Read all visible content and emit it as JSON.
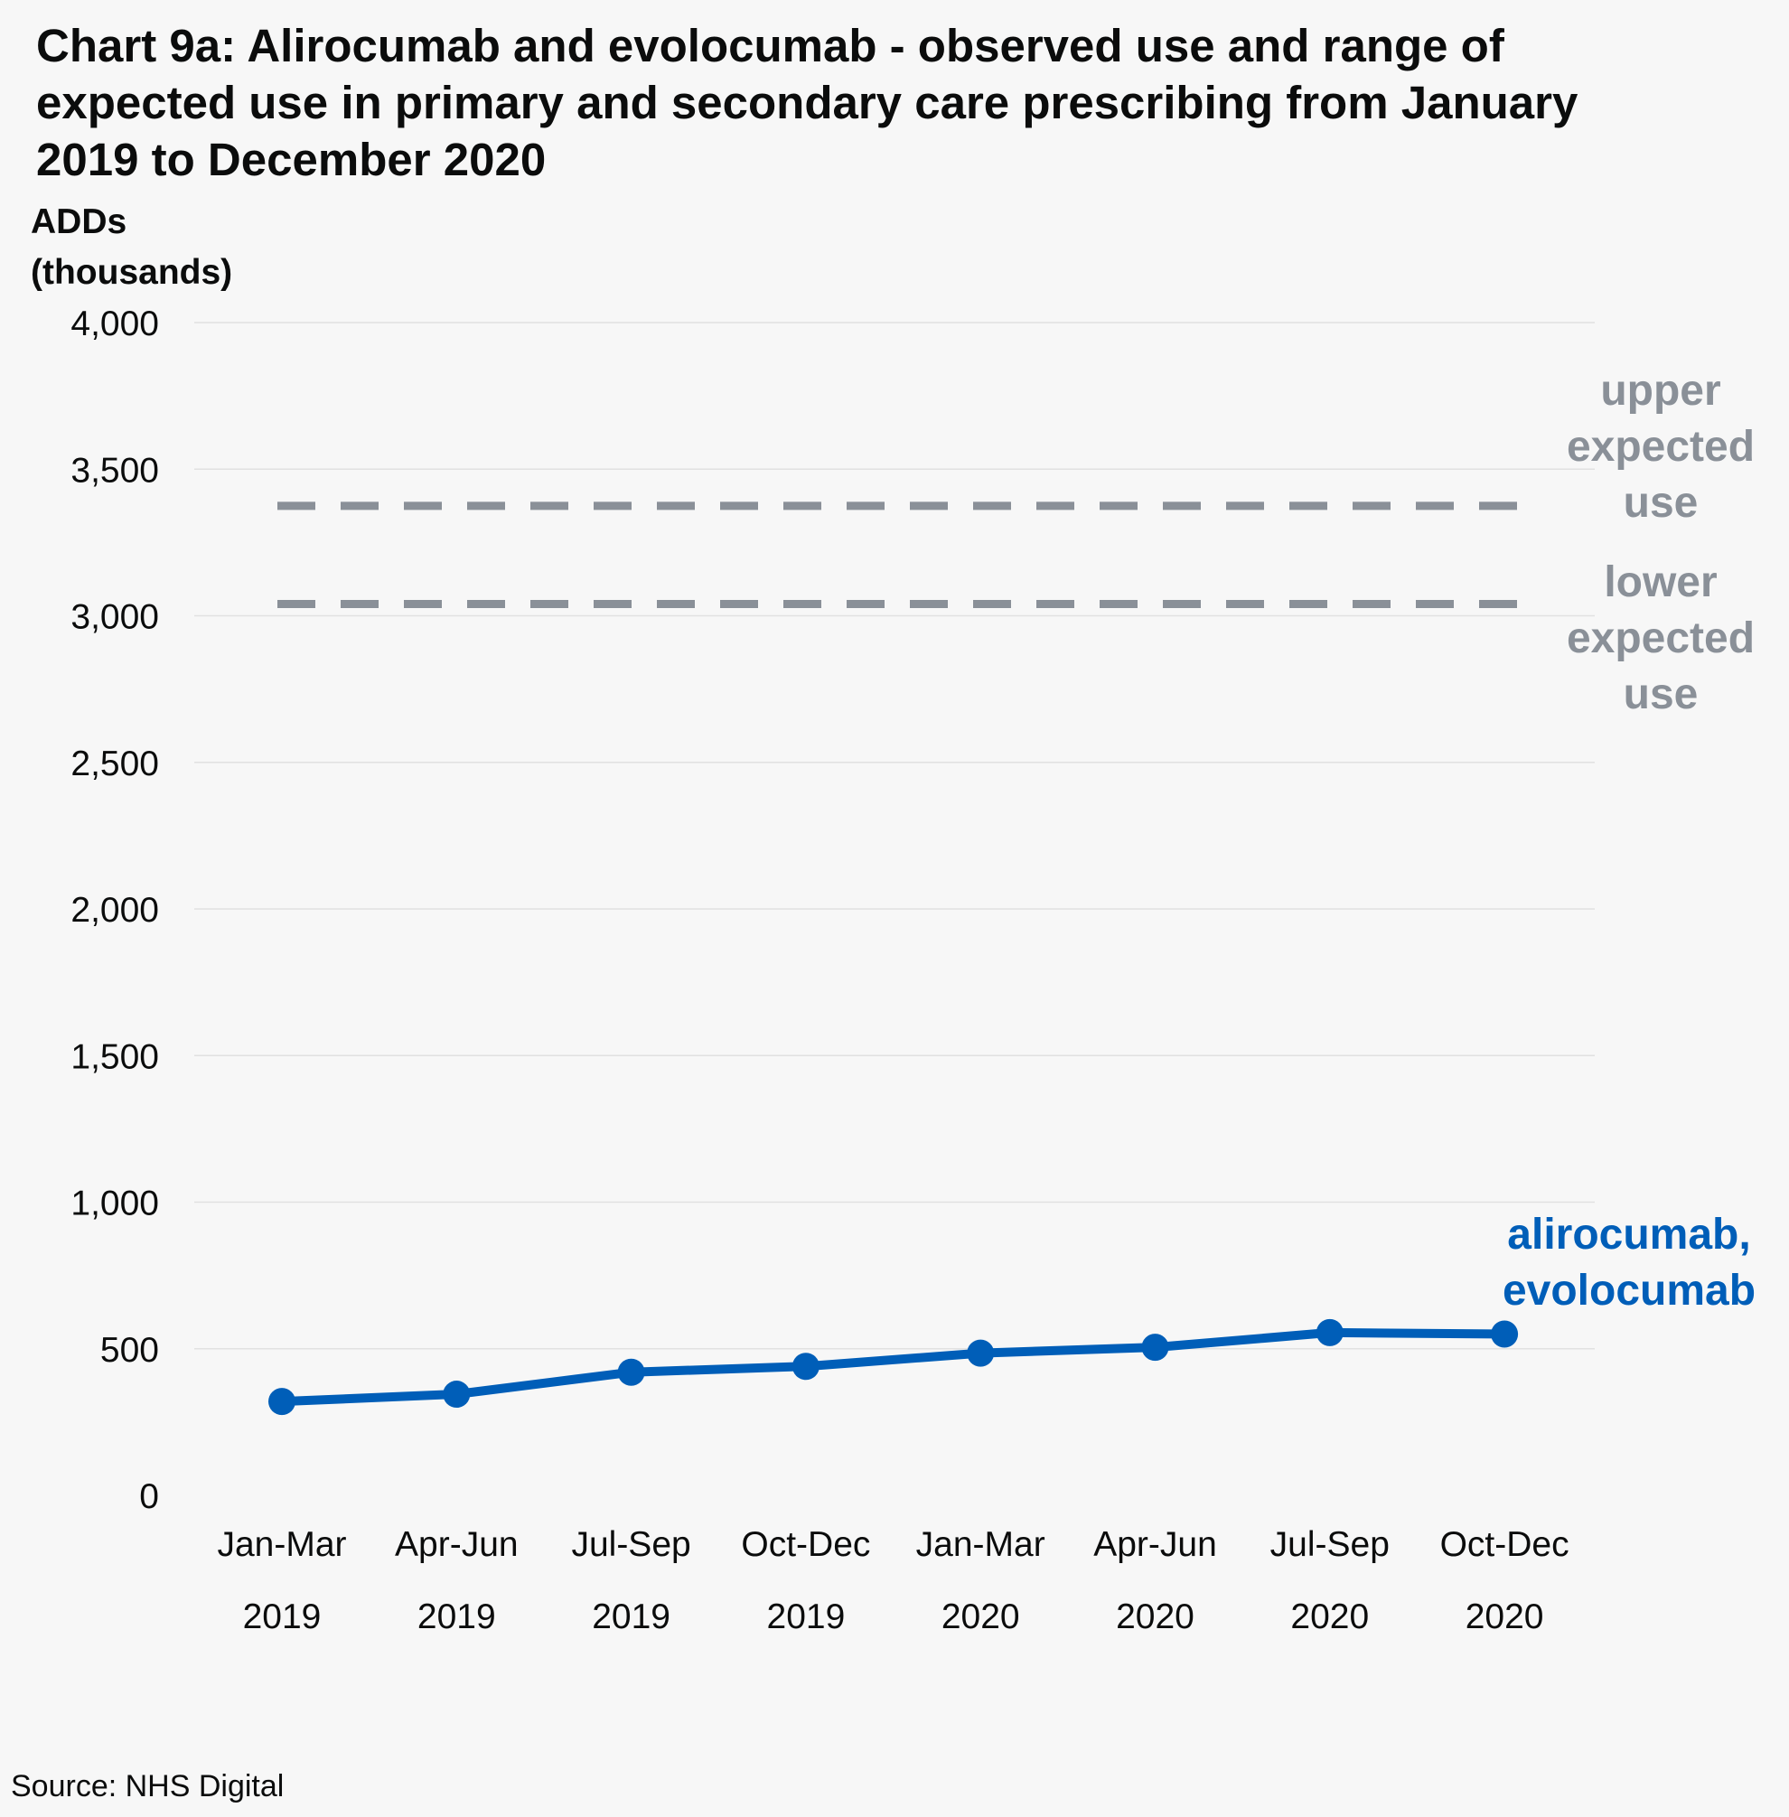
{
  "chart_data": {
    "type": "line",
    "title": [
      "Chart 9a: Alirocumab and evolocumab - observed use and range of",
      "expected use in primary and secondary care prescribing from January",
      "2019 to December 2020"
    ],
    "ylabel": [
      "ADDs",
      "(thousands)"
    ],
    "ylim": [
      0,
      4000
    ],
    "yticks": [
      "0",
      "500",
      "1,000",
      "1,500",
      "2,000",
      "2,500",
      "3,000",
      "3,500",
      "4,000"
    ],
    "ytick_values": [
      0,
      500,
      1000,
      1500,
      2000,
      2500,
      3000,
      3500,
      4000
    ],
    "categories": [
      [
        "Jan-Mar",
        "2019"
      ],
      [
        "Apr-Jun",
        "2019"
      ],
      [
        "Jul-Sep",
        "2019"
      ],
      [
        "Oct-Dec",
        "2019"
      ],
      [
        "Jan-Mar",
        "2020"
      ],
      [
        "Apr-Jun",
        "2020"
      ],
      [
        "Jul-Sep",
        "2020"
      ],
      [
        "Oct-Dec",
        "2020"
      ]
    ],
    "grid": true,
    "series": [
      {
        "name": [
          "alirocumab,",
          "evolocumab"
        ],
        "values": [
          320,
          345,
          420,
          440,
          485,
          505,
          555,
          550
        ],
        "color": "#005eb8",
        "style": "solid-with-markers"
      }
    ],
    "reference_lines": [
      {
        "label": [
          "upper",
          "expected",
          "use"
        ],
        "value": 3375,
        "color": "#8a9098",
        "style": "dashed"
      },
      {
        "label": [
          "lower",
          "expected",
          "use"
        ],
        "value": 3040,
        "color": "#8a9098",
        "style": "dashed"
      }
    ],
    "source": "Source: NHS Digital"
  }
}
